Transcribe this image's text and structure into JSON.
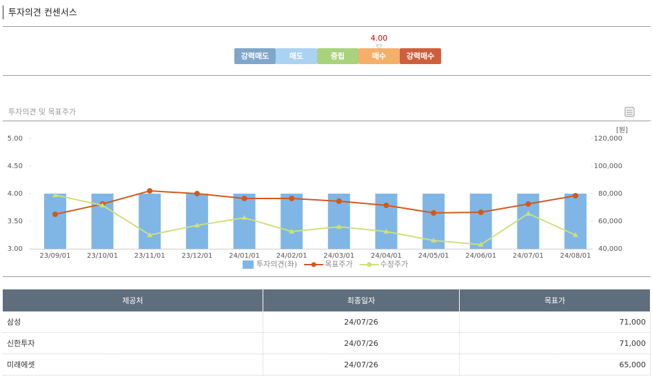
{
  "header": {
    "title": "투자의견 컨센서스"
  },
  "consensus": {
    "segments": [
      {
        "label": "강력매도",
        "color": "#7fa7c9"
      },
      {
        "label": "매도",
        "color": "#aad2f2"
      },
      {
        "label": "중립",
        "color": "#a9d27c"
      },
      {
        "label": "매수",
        "color": "#f4b06b"
      },
      {
        "label": "강력매수",
        "color": "#cf5f3c"
      }
    ],
    "value": {
      "value": 4,
      "label": "4.00"
    }
  },
  "chart_data": {
    "type": "combo",
    "title": "투자의견 및 목표주가",
    "y2_unit": "[원]",
    "categories": [
      "23/09/01",
      "23/10/01",
      "23/11/01",
      "23/12/01",
      "24/01/01",
      "24/02/01",
      "24/03/01",
      "24/04/01",
      "24/05/01",
      "24/06/01",
      "24/07/01",
      "24/08/01"
    ],
    "series": [
      {
        "name": "투자의견(좌)",
        "type": "bar",
        "color": "#7fb6e6",
        "values": [
          4,
          4,
          4,
          4,
          4,
          4,
          4,
          4,
          4,
          4,
          4,
          4
        ]
      },
      {
        "name": "목표주가",
        "type": "line",
        "marker": "circle",
        "axis": "y2",
        "color": "#d0591e",
        "values": [
          65000,
          72500,
          82000,
          80000,
          76500,
          76500,
          74500,
          71500,
          66000,
          66500,
          72500,
          78500
        ]
      },
      {
        "name": "수정주가",
        "type": "line",
        "marker": "triangle",
        "axis": "y2",
        "color": "#cde07a",
        "values": [
          79000,
          71500,
          50000,
          57000,
          62500,
          52500,
          56000,
          52500,
          46000,
          43000,
          65500,
          50000
        ]
      }
    ],
    "ylim": [
      3,
      5
    ],
    "yticks": [
      {
        "value": 3,
        "label": "3.00"
      },
      {
        "value": 3.5,
        "label": "3.50"
      },
      {
        "value": 4,
        "label": "4.00"
      },
      {
        "value": 4.5,
        "label": "4.50"
      },
      {
        "value": 5,
        "label": "5.00"
      }
    ],
    "y2lim": [
      40000,
      120000
    ],
    "y2ticks": [
      {
        "value": 40000,
        "label": "40,000"
      },
      {
        "value": 60000,
        "label": "60,000"
      },
      {
        "value": 80000,
        "label": "80,000"
      },
      {
        "value": 100000,
        "label": "100,000"
      },
      {
        "value": 120000,
        "label": "120,000"
      }
    ],
    "grid": false
  },
  "table": {
    "headers": [
      "제공처",
      "최종일자",
      "목표가"
    ],
    "rows": [
      [
        "삼성",
        "24/07/26",
        "71,000"
      ],
      [
        "신한투자",
        "24/07/26",
        "71,000"
      ],
      [
        "미래에셋",
        "24/07/26",
        "65,000"
      ]
    ]
  }
}
